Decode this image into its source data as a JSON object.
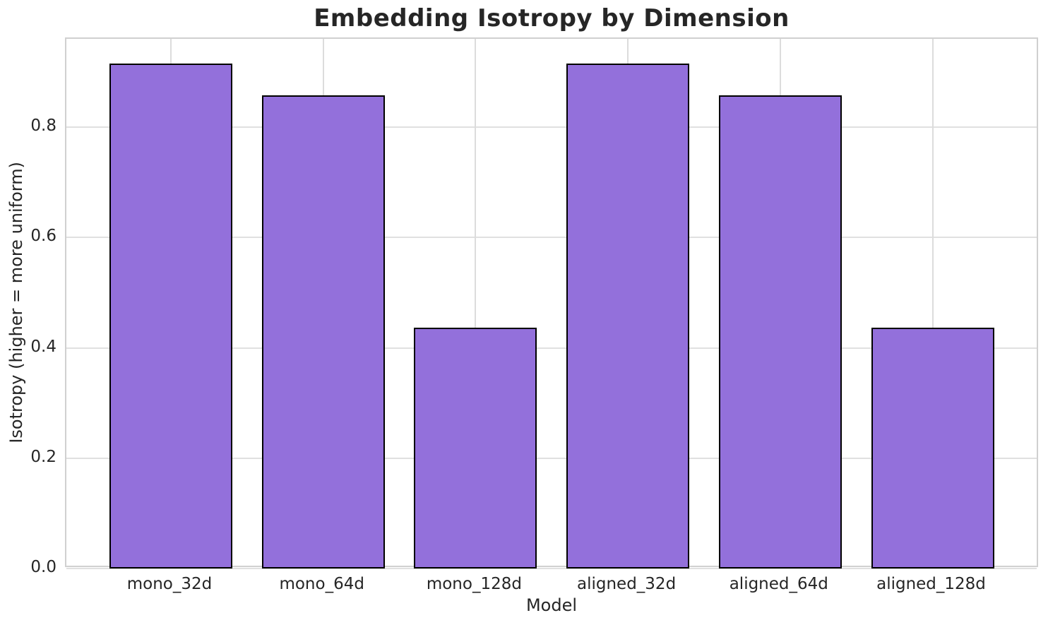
{
  "chart_data": {
    "type": "bar",
    "title": "Embedding Isotropy by Dimension",
    "xlabel": "Model",
    "ylabel": "Isotropy (higher = more uniform)",
    "categories": [
      "mono_32d",
      "mono_64d",
      "mono_128d",
      "aligned_32d",
      "aligned_64d",
      "aligned_128d"
    ],
    "values": [
      0.915,
      0.857,
      0.437,
      0.915,
      0.857,
      0.437
    ],
    "ylim": [
      0,
      0.96
    ],
    "ytick_values": [
      0.0,
      0.2,
      0.4,
      0.6,
      0.8
    ],
    "ytick_labels": [
      "0.0",
      "0.2",
      "0.4",
      "0.6",
      "0.8"
    ],
    "grid": true,
    "legend_position": "none",
    "bar_color": "#9370DB",
    "bar_edge_color": "#000000",
    "grid_color": "#dcdcdc",
    "spine_color": "#d0d0d0",
    "text_color": "#262626",
    "background_color": "#ffffff"
  }
}
